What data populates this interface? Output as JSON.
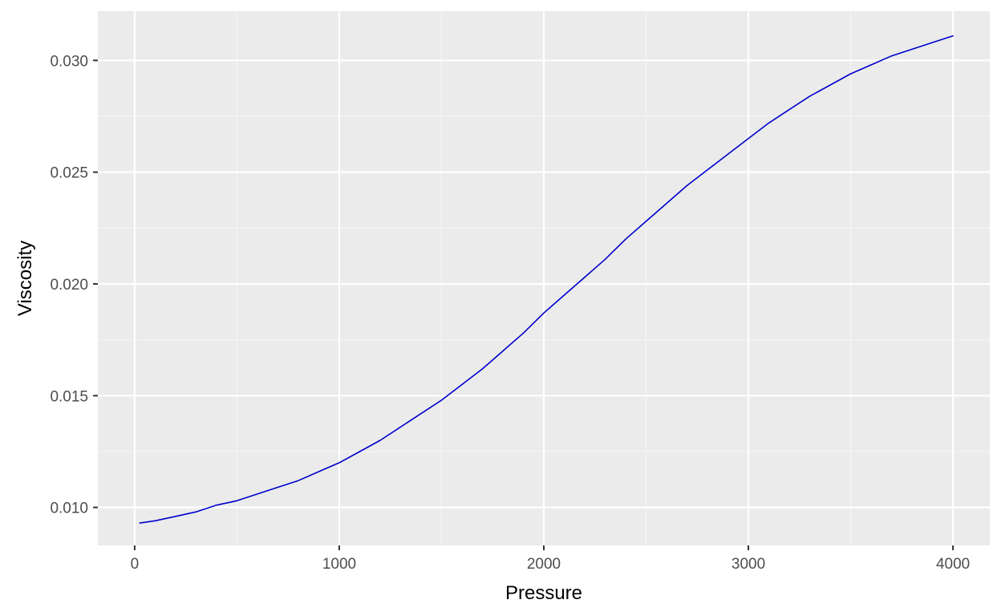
{
  "chart_data": {
    "type": "line",
    "title": "",
    "xlabel": "Pressure",
    "ylabel": "Viscosity",
    "xlim": [
      -180,
      4180
    ],
    "ylim": [
      0.0083,
      0.0322
    ],
    "x_ticks": [
      0,
      1000,
      2000,
      3000,
      4000
    ],
    "x_tick_labels": [
      "0",
      "1000",
      "2000",
      "3000",
      "4000"
    ],
    "y_ticks": [
      0.01,
      0.015,
      0.02,
      0.025,
      0.03
    ],
    "y_tick_labels": [
      "0.010",
      "0.015",
      "0.020",
      "0.025",
      "0.030"
    ],
    "grid": true,
    "colors": {
      "panel_background": "#ebebeb",
      "grid_major": "#ffffff",
      "grid_minor": "#f5f5f5",
      "line": "#0000cc"
    },
    "series": [
      {
        "x": [
          25,
          100,
          200,
          300,
          400,
          500,
          600,
          700,
          800,
          900,
          1000,
          1100,
          1200,
          1300,
          1400,
          1500,
          1600,
          1700,
          1800,
          1900,
          2000,
          2100,
          2200,
          2300,
          2400,
          2500,
          2600,
          2700,
          2800,
          2900,
          3000,
          3100,
          3200,
          3300,
          3400,
          3500,
          3600,
          3700,
          3800,
          3900,
          4000
        ],
        "y": [
          0.0093,
          0.0094,
          0.0096,
          0.0098,
          0.0101,
          0.0103,
          0.0106,
          0.0109,
          0.0112,
          0.0116,
          0.012,
          0.0125,
          0.013,
          0.0136,
          0.0142,
          0.0148,
          0.0155,
          0.0162,
          0.017,
          0.0178,
          0.0187,
          0.0195,
          0.0203,
          0.0211,
          0.022,
          0.0228,
          0.0236,
          0.0244,
          0.0251,
          0.0258,
          0.0265,
          0.0272,
          0.0278,
          0.0284,
          0.0289,
          0.0294,
          0.0298,
          0.0302,
          0.0305,
          0.0308,
          0.0311
        ]
      }
    ]
  }
}
